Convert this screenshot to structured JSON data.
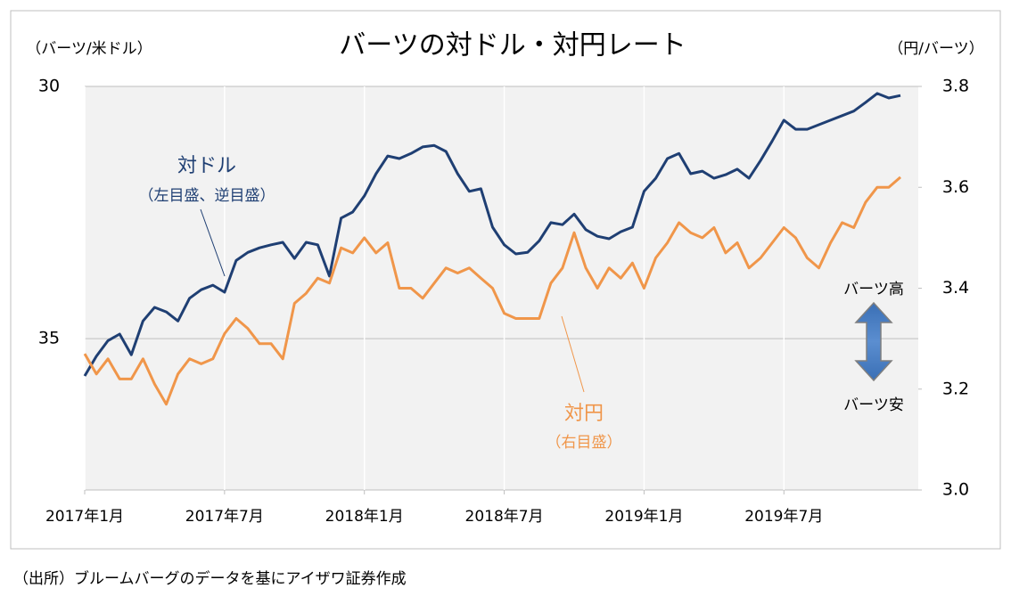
{
  "chart_data": {
    "type": "line",
    "title": "バーツの対ドル・対円レート",
    "y_label": "（バーツ/米ドル）",
    "y2_label": "（円/バーツ）",
    "source": "（出所）ブルームバーグのデータを基にアイザワ証券作成",
    "categories": [
      "2017年1月",
      null,
      null,
      null,
      null,
      null,
      null,
      null,
      null,
      null,
      null,
      null,
      "2017年7月",
      null,
      null,
      null,
      null,
      null,
      null,
      null,
      null,
      null,
      null,
      null,
      "2018年1月",
      null,
      null,
      null,
      null,
      null,
      null,
      null,
      null,
      null,
      null,
      null,
      "2018年7月",
      null,
      null,
      null,
      null,
      null,
      null,
      null,
      null,
      null,
      null,
      null,
      "2019年1月",
      null,
      null,
      null,
      null,
      null,
      null,
      null,
      null,
      null,
      null,
      null,
      "2019年7月",
      null,
      null,
      null,
      null,
      null,
      null,
      null,
      null,
      null,
      null
    ],
    "ylim": [
      38,
      30
    ],
    "yticks": [
      30,
      35
    ],
    "y2lim": [
      3.0,
      3.8
    ],
    "y2ticks": [
      {
        "value": 3.0,
        "label": "3.0"
      },
      3.2,
      3.4,
      3.6,
      3.8
    ],
    "grid": true,
    "series": [
      {
        "name": "対ドル",
        "note": "（左目盛、逆目盛）",
        "color": "#1f3f73",
        "axis": "y",
        "values": [
          35.74,
          35.35,
          35.04,
          34.91,
          35.32,
          34.65,
          34.38,
          34.47,
          34.65,
          34.2,
          34.03,
          33.94,
          34.08,
          33.45,
          33.29,
          33.2,
          33.14,
          33.09,
          33.41,
          33.09,
          33.14,
          33.76,
          32.61,
          32.49,
          32.17,
          31.73,
          31.38,
          31.43,
          31.33,
          31.2,
          31.17,
          31.29,
          31.73,
          32.08,
          32.03,
          32.79,
          33.14,
          33.32,
          33.29,
          33.06,
          32.7,
          32.74,
          32.53,
          32.84,
          32.97,
          33.02,
          32.88,
          32.79,
          32.08,
          31.82,
          31.43,
          31.33,
          31.73,
          31.68,
          31.82,
          31.75,
          31.64,
          31.82,
          31.47,
          31.08,
          30.67,
          30.85,
          30.85,
          30.76,
          30.67,
          30.58,
          30.49,
          30.32,
          30.14,
          30.23,
          30.18
        ]
      },
      {
        "name": "対円",
        "note": "（右目盛）",
        "color": "#f0964a",
        "axis": "y2",
        "values": [
          3.27,
          3.23,
          3.26,
          3.22,
          3.22,
          3.26,
          3.21,
          3.17,
          3.23,
          3.26,
          3.25,
          3.26,
          3.31,
          3.34,
          3.32,
          3.29,
          3.29,
          3.26,
          3.37,
          3.39,
          3.42,
          3.41,
          3.48,
          3.47,
          3.5,
          3.47,
          3.49,
          3.4,
          3.4,
          3.38,
          3.41,
          3.44,
          3.43,
          3.44,
          3.42,
          3.4,
          3.35,
          3.34,
          3.34,
          3.34,
          3.41,
          3.44,
          3.51,
          3.44,
          3.4,
          3.44,
          3.42,
          3.45,
          3.4,
          3.46,
          3.49,
          3.53,
          3.51,
          3.5,
          3.52,
          3.47,
          3.49,
          3.44,
          3.46,
          3.49,
          3.52,
          3.5,
          3.46,
          3.44,
          3.49,
          3.53,
          3.52,
          3.57,
          3.6,
          3.6,
          3.62
        ]
      }
    ],
    "annotations": {
      "up": "バーツ高",
      "down": "バーツ安"
    }
  }
}
